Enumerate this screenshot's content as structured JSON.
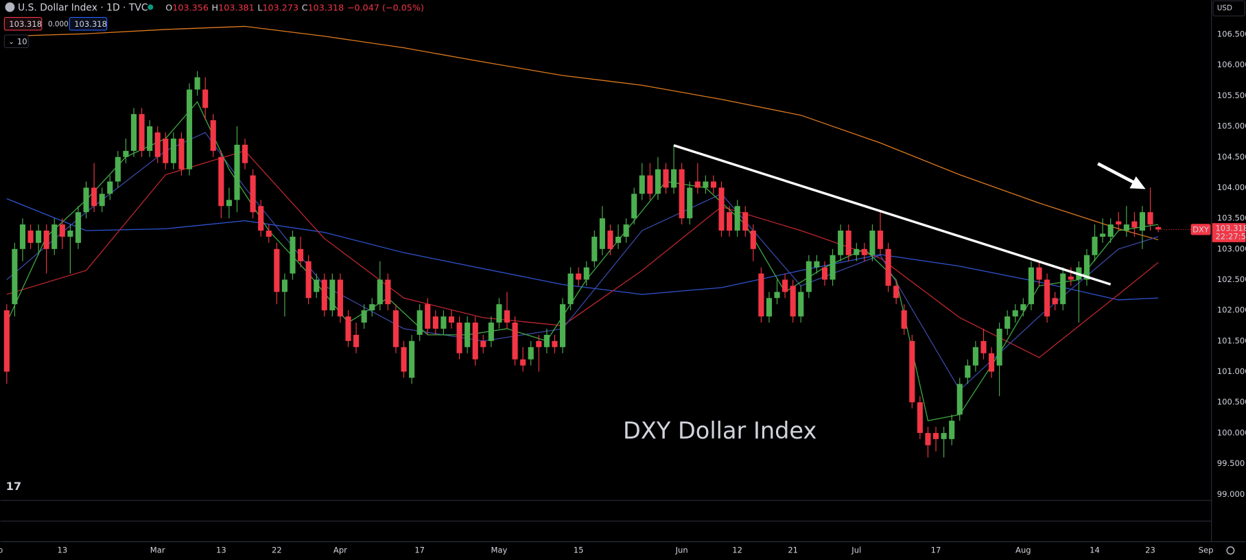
{
  "chart_data": {
    "type": "candlestick",
    "annotation": "DXY Dollar Index",
    "header": {
      "symbol": "U.S. Dollar Index · 1D · TVC",
      "open_label": "O",
      "high_label": "H",
      "low_label": "L",
      "close_label": "C",
      "change": "−0.047 (−0.05%)",
      "indicator_value": "0.000",
      "interval": "10"
    },
    "currency": "USD",
    "price_tag": {
      "symbol": "DXY",
      "countdown": "22:27:52"
    },
    "up_color": "#4caf50",
    "down_color": "#f23645",
    "grid": false,
    "xlim": [
      -0.8,
      151.7
    ],
    "ylim": [
      98.9,
      107.06
    ],
    "xticks": [
      {
        "value": -0.8,
        "label": "b"
      },
      {
        "value": 7,
        "label": "13"
      },
      {
        "value": 19,
        "label": "Mar"
      },
      {
        "value": 27,
        "label": "13"
      },
      {
        "value": 34,
        "label": "22"
      },
      {
        "value": 42,
        "label": "Apr"
      },
      {
        "value": 52,
        "label": "17"
      },
      {
        "value": 62,
        "label": "May"
      },
      {
        "value": 72,
        "label": "15"
      },
      {
        "value": 85,
        "label": "Jun"
      },
      {
        "value": 92,
        "label": "12"
      },
      {
        "value": 99,
        "label": "21"
      },
      {
        "value": 107,
        "label": "Jul"
      },
      {
        "value": 117,
        "label": "17"
      },
      {
        "value": 128,
        "label": "Aug"
      },
      {
        "value": 137,
        "label": "14"
      },
      {
        "value": 144,
        "label": "23"
      },
      {
        "value": 151,
        "label": "Sep"
      }
    ],
    "yticks": [
      {
        "value": 99,
        "label": "99.000"
      },
      {
        "value": 99.5,
        "label": "99.500"
      },
      {
        "value": 100,
        "label": "100.000"
      },
      {
        "value": 100.5,
        "label": "100.500"
      },
      {
        "value": 101,
        "label": "101.000"
      },
      {
        "value": 101.5,
        "label": "101.500"
      },
      {
        "value": 102,
        "label": "102.000"
      },
      {
        "value": 102.5,
        "label": "102.500"
      },
      {
        "value": 103,
        "label": "103.000"
      },
      {
        "value": 103.5,
        "label": "103.500"
      },
      {
        "value": 104,
        "label": "104.000"
      },
      {
        "value": 104.5,
        "label": "104.500"
      },
      {
        "value": 105,
        "label": "105.000"
      },
      {
        "value": 105.5,
        "label": "105.500"
      },
      {
        "value": 106,
        "label": "106.000"
      },
      {
        "value": 106.5,
        "label": "106.500"
      }
    ],
    "candles": [
      [
        102.0,
        102.1,
        100.8,
        101.0
      ],
      [
        102.1,
        103.1,
        101.9,
        103.0
      ],
      [
        103.0,
        103.5,
        102.8,
        103.4
      ],
      [
        103.3,
        103.4,
        103.0,
        103.1
      ],
      [
        103.1,
        103.4,
        102.9,
        103.3
      ],
      [
        103.3,
        103.4,
        102.6,
        103.0
      ],
      [
        103.0,
        103.5,
        102.9,
        103.4
      ],
      [
        103.4,
        103.5,
        103.0,
        103.2
      ],
      [
        103.2,
        103.4,
        102.6,
        103.3
      ],
      [
        103.1,
        103.7,
        103.0,
        103.6
      ],
      [
        103.6,
        104.1,
        103.5,
        104.0
      ],
      [
        104.0,
        104.4,
        103.6,
        103.7
      ],
      [
        103.7,
        104.0,
        103.6,
        103.9
      ],
      [
        103.9,
        104.2,
        103.8,
        104.1
      ],
      [
        104.1,
        104.6,
        104.0,
        104.5
      ],
      [
        104.5,
        104.8,
        104.4,
        104.6
      ],
      [
        104.6,
        105.3,
        104.5,
        105.2
      ],
      [
        105.2,
        105.3,
        104.5,
        104.6
      ],
      [
        104.6,
        105.1,
        104.5,
        105.0
      ],
      [
        104.9,
        105.0,
        104.4,
        104.5
      ],
      [
        104.8,
        104.9,
        104.3,
        104.4
      ],
      [
        104.4,
        104.9,
        104.3,
        104.8
      ],
      [
        104.8,
        104.9,
        104.2,
        104.3
      ],
      [
        104.3,
        105.7,
        104.2,
        105.6
      ],
      [
        105.6,
        105.9,
        105.5,
        105.8
      ],
      [
        105.6,
        105.8,
        105.1,
        105.3
      ],
      [
        105.1,
        105.2,
        104.5,
        104.6
      ],
      [
        104.5,
        104.6,
        103.5,
        103.7
      ],
      [
        103.7,
        104.0,
        103.5,
        103.8
      ],
      [
        103.8,
        105.0,
        103.6,
        104.7
      ],
      [
        104.7,
        104.8,
        104.3,
        104.4
      ],
      [
        104.2,
        104.3,
        103.5,
        103.6
      ],
      [
        103.7,
        103.8,
        103.2,
        103.3
      ],
      [
        103.3,
        103.4,
        103.1,
        103.2
      ],
      [
        103.0,
        103.1,
        102.1,
        102.3
      ],
      [
        102.3,
        102.6,
        101.9,
        102.5
      ],
      [
        102.6,
        103.3,
        102.5,
        103.2
      ],
      [
        103.0,
        103.2,
        102.7,
        102.8
      ],
      [
        102.8,
        102.9,
        102.1,
        102.2
      ],
      [
        102.3,
        102.6,
        102.2,
        102.5
      ],
      [
        102.5,
        102.6,
        101.9,
        102.0
      ],
      [
        102.0,
        102.6,
        101.9,
        102.5
      ],
      [
        102.5,
        102.6,
        101.8,
        101.9
      ],
      [
        101.9,
        102.0,
        101.4,
        101.5
      ],
      [
        101.6,
        101.8,
        101.3,
        101.4
      ],
      [
        101.8,
        102.1,
        101.7,
        102.0
      ],
      [
        102.0,
        102.2,
        101.9,
        102.1
      ],
      [
        102.1,
        102.8,
        102.0,
        102.5
      ],
      [
        102.5,
        102.6,
        102.0,
        102.1
      ],
      [
        102.0,
        102.1,
        101.3,
        101.4
      ],
      [
        101.4,
        101.5,
        100.9,
        101.0
      ],
      [
        100.9,
        101.6,
        100.8,
        101.5
      ],
      [
        101.6,
        102.1,
        101.5,
        102.0
      ],
      [
        102.1,
        102.2,
        101.6,
        101.7
      ],
      [
        101.9,
        102.0,
        101.6,
        101.7
      ],
      [
        101.7,
        102.0,
        101.6,
        101.9
      ],
      [
        101.9,
        102.0,
        101.7,
        101.8
      ],
      [
        101.8,
        101.9,
        101.2,
        101.3
      ],
      [
        101.4,
        101.9,
        101.3,
        101.8
      ],
      [
        101.8,
        101.9,
        101.1,
        101.2
      ],
      [
        101.5,
        101.6,
        101.3,
        101.4
      ],
      [
        101.5,
        101.9,
        101.4,
        101.8
      ],
      [
        101.8,
        102.2,
        101.7,
        102.1
      ],
      [
        102.0,
        102.3,
        101.7,
        101.8
      ],
      [
        101.8,
        101.9,
        101.1,
        101.2
      ],
      [
        101.2,
        101.4,
        101.0,
        101.1
      ],
      [
        101.2,
        101.5,
        101.1,
        101.4
      ],
      [
        101.5,
        101.6,
        101.0,
        101.4
      ],
      [
        101.4,
        101.7,
        101.3,
        101.6
      ],
      [
        101.5,
        101.6,
        101.3,
        101.4
      ],
      [
        101.4,
        102.2,
        101.3,
        102.1
      ],
      [
        102.1,
        102.7,
        102.0,
        102.6
      ],
      [
        102.6,
        102.7,
        102.4,
        102.5
      ],
      [
        102.5,
        102.8,
        102.4,
        102.7
      ],
      [
        102.8,
        103.3,
        102.7,
        103.2
      ],
      [
        103.0,
        103.7,
        102.9,
        103.5
      ],
      [
        103.3,
        103.4,
        102.9,
        103.0
      ],
      [
        103.1,
        103.4,
        103.0,
        103.2
      ],
      [
        103.2,
        103.5,
        103.1,
        103.4
      ],
      [
        103.5,
        104.0,
        103.4,
        103.9
      ],
      [
        103.9,
        104.4,
        103.8,
        104.2
      ],
      [
        104.2,
        104.4,
        103.8,
        103.9
      ],
      [
        103.9,
        104.5,
        103.8,
        104.3
      ],
      [
        104.3,
        104.4,
        103.9,
        104.0
      ],
      [
        104.0,
        104.7,
        103.9,
        104.3
      ],
      [
        104.3,
        104.4,
        103.4,
        103.5
      ],
      [
        103.5,
        104.1,
        103.4,
        104.0
      ],
      [
        104.1,
        104.4,
        103.9,
        104.0
      ],
      [
        104.0,
        104.2,
        103.9,
        104.1
      ],
      [
        104.1,
        104.2,
        103.9,
        104.0
      ],
      [
        104.0,
        104.1,
        103.2,
        103.3
      ],
      [
        103.6,
        103.7,
        103.2,
        103.3
      ],
      [
        103.3,
        103.8,
        103.2,
        103.7
      ],
      [
        103.6,
        103.7,
        103.2,
        103.3
      ],
      [
        103.3,
        103.4,
        102.8,
        103.0
      ],
      [
        102.6,
        102.7,
        101.8,
        101.9
      ],
      [
        101.9,
        102.3,
        101.8,
        102.2
      ],
      [
        102.2,
        102.5,
        102.1,
        102.3
      ],
      [
        102.5,
        102.6,
        102.2,
        102.3
      ],
      [
        102.4,
        102.5,
        101.8,
        101.9
      ],
      [
        101.9,
        102.4,
        101.8,
        102.3
      ],
      [
        102.3,
        102.9,
        102.2,
        102.8
      ],
      [
        102.7,
        102.9,
        102.6,
        102.8
      ],
      [
        102.7,
        102.8,
        102.4,
        102.5
      ],
      [
        102.5,
        103.0,
        102.4,
        102.9
      ],
      [
        102.9,
        103.4,
        102.8,
        103.3
      ],
      [
        103.3,
        103.4,
        102.8,
        102.9
      ],
      [
        102.9,
        103.1,
        102.8,
        103.0
      ],
      [
        103.0,
        103.1,
        102.8,
        102.9
      ],
      [
        102.9,
        103.4,
        102.8,
        103.3
      ],
      [
        103.3,
        103.6,
        102.9,
        103.0
      ],
      [
        103.0,
        103.1,
        102.3,
        102.4
      ],
      [
        102.4,
        102.5,
        102.1,
        102.2
      ],
      [
        102.0,
        102.1,
        101.6,
        101.7
      ],
      [
        101.5,
        101.6,
        100.4,
        100.5
      ],
      [
        100.5,
        100.6,
        99.9,
        100.0
      ],
      [
        100.0,
        100.1,
        99.6,
        99.8
      ],
      [
        100.0,
        100.1,
        99.7,
        99.9
      ],
      [
        99.9,
        100.1,
        99.6,
        100.0
      ],
      [
        99.9,
        100.3,
        99.8,
        100.2
      ],
      [
        100.3,
        100.9,
        100.2,
        100.8
      ],
      [
        100.9,
        101.2,
        100.8,
        101.1
      ],
      [
        101.1,
        101.5,
        101.0,
        101.4
      ],
      [
        101.5,
        101.7,
        101.2,
        101.3
      ],
      [
        101.3,
        101.4,
        100.9,
        101.0
      ],
      [
        101.1,
        101.8,
        100.6,
        101.7
      ],
      [
        101.7,
        102.0,
        101.6,
        101.9
      ],
      [
        101.9,
        102.1,
        101.8,
        102.0
      ],
      [
        102.0,
        102.2,
        101.9,
        102.1
      ],
      [
        102.1,
        102.8,
        102.0,
        102.7
      ],
      [
        102.7,
        102.8,
        102.4,
        102.5
      ],
      [
        102.5,
        102.6,
        101.8,
        101.9
      ],
      [
        102.2,
        102.3,
        102.0,
        102.1
      ],
      [
        102.1,
        102.7,
        102.0,
        102.6
      ],
      [
        102.55,
        102.7,
        102.4,
        102.5
      ],
      [
        102.5,
        102.8,
        101.8,
        102.7
      ],
      [
        102.5,
        103.0,
        102.4,
        102.9
      ],
      [
        102.9,
        103.4,
        102.8,
        103.2
      ],
      [
        103.2,
        103.5,
        103.1,
        103.25
      ],
      [
        103.2,
        103.5,
        103.1,
        103.4
      ],
      [
        103.45,
        103.6,
        103.3,
        103.4
      ],
      [
        103.3,
        103.7,
        103.2,
        103.4
      ],
      [
        103.45,
        103.6,
        103.2,
        103.35
      ],
      [
        103.3,
        103.7,
        103.0,
        103.6
      ],
      [
        103.6,
        104.0,
        103.3,
        103.4
      ],
      [
        103.356,
        103.381,
        103.273,
        103.318
      ]
    ],
    "series": [
      {
        "color": "#e07b1f",
        "x": [
          0,
          10,
          20,
          30,
          40,
          50,
          60,
          70,
          80,
          90,
          100,
          110,
          120,
          130,
          140,
          145
        ],
        "values": [
          106.47,
          106.51,
          106.58,
          106.63,
          106.47,
          106.28,
          106.05,
          105.83,
          105.67,
          105.44,
          105.18,
          104.73,
          104.21,
          103.75,
          103.33,
          103.15
        ]
      },
      {
        "color": "#2f55d4",
        "x": [
          0,
          10,
          20,
          30,
          40,
          50,
          60,
          70,
          80,
          90,
          100,
          110,
          120,
          130,
          140,
          145
        ],
        "values": [
          103.82,
          103.3,
          103.33,
          103.46,
          103.27,
          102.94,
          102.68,
          102.42,
          102.26,
          102.37,
          102.65,
          102.91,
          102.72,
          102.46,
          102.17,
          102.2
        ]
      },
      {
        "color": "#c2282f",
        "x": [
          0,
          10,
          20,
          30,
          40,
          50,
          60,
          70,
          80,
          90,
          100,
          110,
          120,
          130,
          140,
          145
        ],
        "values": [
          102.26,
          102.65,
          104.21,
          104.6,
          103.17,
          102.2,
          101.88,
          101.75,
          102.65,
          103.69,
          103.3,
          102.85,
          101.88,
          101.23,
          102.26,
          102.78
        ]
      },
      {
        "color": "#3a4aa8",
        "x": [
          0,
          10,
          20,
          25,
          30,
          40,
          50,
          60,
          70,
          80,
          90,
          100,
          110,
          120,
          130,
          140,
          145
        ],
        "values": [
          102.5,
          103.6,
          104.6,
          104.9,
          104.0,
          102.4,
          101.7,
          101.5,
          101.7,
          103.3,
          103.9,
          102.4,
          102.9,
          100.7,
          101.9,
          103.0,
          103.2
        ]
      },
      {
        "color": "#3fae45",
        "x": [
          0,
          5,
          10,
          15,
          20,
          24,
          28,
          33,
          38,
          43,
          48,
          53,
          58,
          63,
          68,
          73,
          78,
          83,
          88,
          93,
          98,
          103,
          108,
          112,
          116,
          120,
          125,
          130,
          135,
          140,
          145
        ],
        "values": [
          101.8,
          103.2,
          103.8,
          104.5,
          104.8,
          105.4,
          104.3,
          103.3,
          102.6,
          101.8,
          102.2,
          101.6,
          101.6,
          101.7,
          101.5,
          102.5,
          103.3,
          104.1,
          104.0,
          103.4,
          102.3,
          102.7,
          103.0,
          102.5,
          100.2,
          100.3,
          101.3,
          102.4,
          102.5,
          103.3,
          103.4
        ]
      }
    ]
  }
}
